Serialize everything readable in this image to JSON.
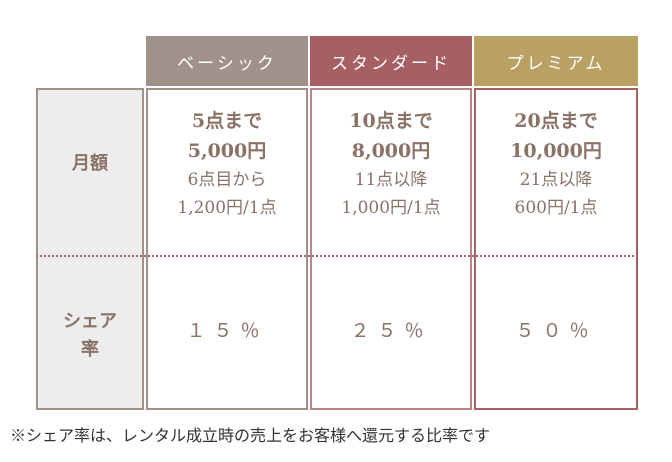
{
  "headers": {
    "basic": "ベーシック",
    "standard": "スタンダード",
    "premium": "プレミアム"
  },
  "row_labels": {
    "fee": "月額",
    "share_line1": "シェア",
    "share_line2": "率"
  },
  "plans": {
    "basic": {
      "line1": "5点まで",
      "line2": "5,000円",
      "line3": "6点目から",
      "line4": "1,200円/1点",
      "share": "１５％"
    },
    "standard": {
      "line1": "10点まで",
      "line2": "8,000円",
      "line3": "11点以降",
      "line4": "1,000円/1点",
      "share": "２５％"
    },
    "premium": {
      "line1": "20点まで",
      "line2": "10,000円",
      "line3": "21点以降",
      "line4": "600円/1点",
      "share": "５０％"
    }
  },
  "footnote": "※シェア率は、レンタル成立時の売上をお客様へ還元する比率です",
  "colors": {
    "basic": "#a0918a",
    "standard": "#a65f63",
    "premium": "#b9a063"
  }
}
